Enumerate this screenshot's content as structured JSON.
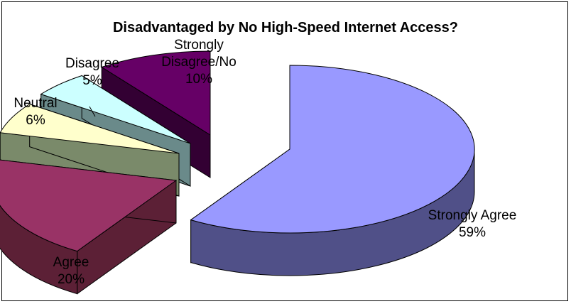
{
  "chart_data": {
    "type": "pie",
    "title": "Disadvantaged by No High-Speed Internet Access?",
    "three_d": true,
    "exploded": true,
    "slices": [
      {
        "label": "Strongly Agree",
        "value": 59,
        "pct_label": "59%",
        "top_color": "#9999FF",
        "side_color": "#505088"
      },
      {
        "label": "Agree",
        "value": 20,
        "pct_label": "20%",
        "top_color": "#993366",
        "side_color": "#5C2036"
      },
      {
        "label": "Neutral",
        "value": 6,
        "pct_label": "6%",
        "top_color": "#FFFFCC",
        "side_color": "#7A8A6A"
      },
      {
        "label": "Disagree",
        "value": 5,
        "pct_label": "5%",
        "top_color": "#CCFFFF",
        "side_color": "#6A8A8A"
      },
      {
        "label": "Strongly Disagree/No",
        "label_lines": [
          "Strongly",
          "Disagree/No"
        ],
        "value": 10,
        "pct_label": "10%",
        "top_color": "#660066",
        "side_color": "#330033"
      }
    ],
    "legend": "none"
  }
}
